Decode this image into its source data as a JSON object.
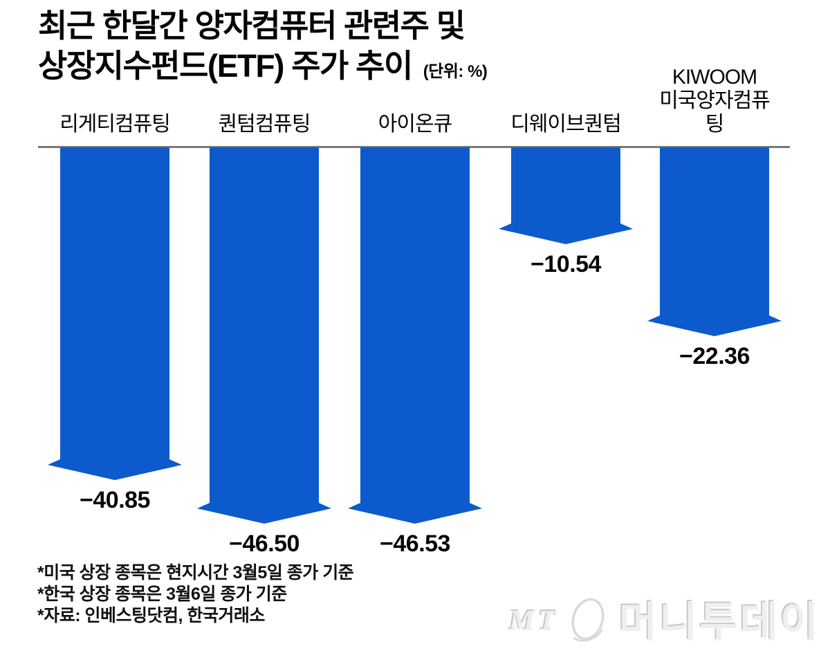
{
  "title": {
    "line1": "최근 한달간 양자컴퓨터 관련주 및",
    "line2": "상장지수펀드(ETF) 주가 추이",
    "unit": "(단위: %)"
  },
  "chart_data": {
    "type": "bar",
    "subtype": "downward-arrow-bars",
    "title": "최근 한달간 양자컴퓨터 관련주 및 상장지수펀드(ETF) 주가 추이",
    "unit": "%",
    "baseline_value": 0,
    "categories": [
      "리게티컴퓨팅",
      "퀀텀컴퓨팅",
      "아이온큐",
      "디웨이브퀀텀",
      "KIWOOM\n미국양자컴퓨팅"
    ],
    "values": [
      -40.85,
      -46.5,
      -46.53,
      -10.54,
      -22.36
    ],
    "value_labels": [
      "−40.85",
      "−46.50",
      "−46.53",
      "−10.54",
      "−22.36"
    ],
    "arrow_color": "#0d5acc",
    "baseline_color": "#787878",
    "grid": false,
    "legend": "none",
    "xlabel": "",
    "ylabel": ""
  },
  "footnotes": [
    "*미국 상장 종목은 현지시간 3월5일 종가 기준",
    "*한국 상장 종목은 3월6일 종가 기준",
    "*자료: 인베스팅닷컴, 한국거래소"
  ],
  "watermark": {
    "mt": "MT",
    "logo_icon": "oval-slash",
    "name": "머니투데이"
  }
}
